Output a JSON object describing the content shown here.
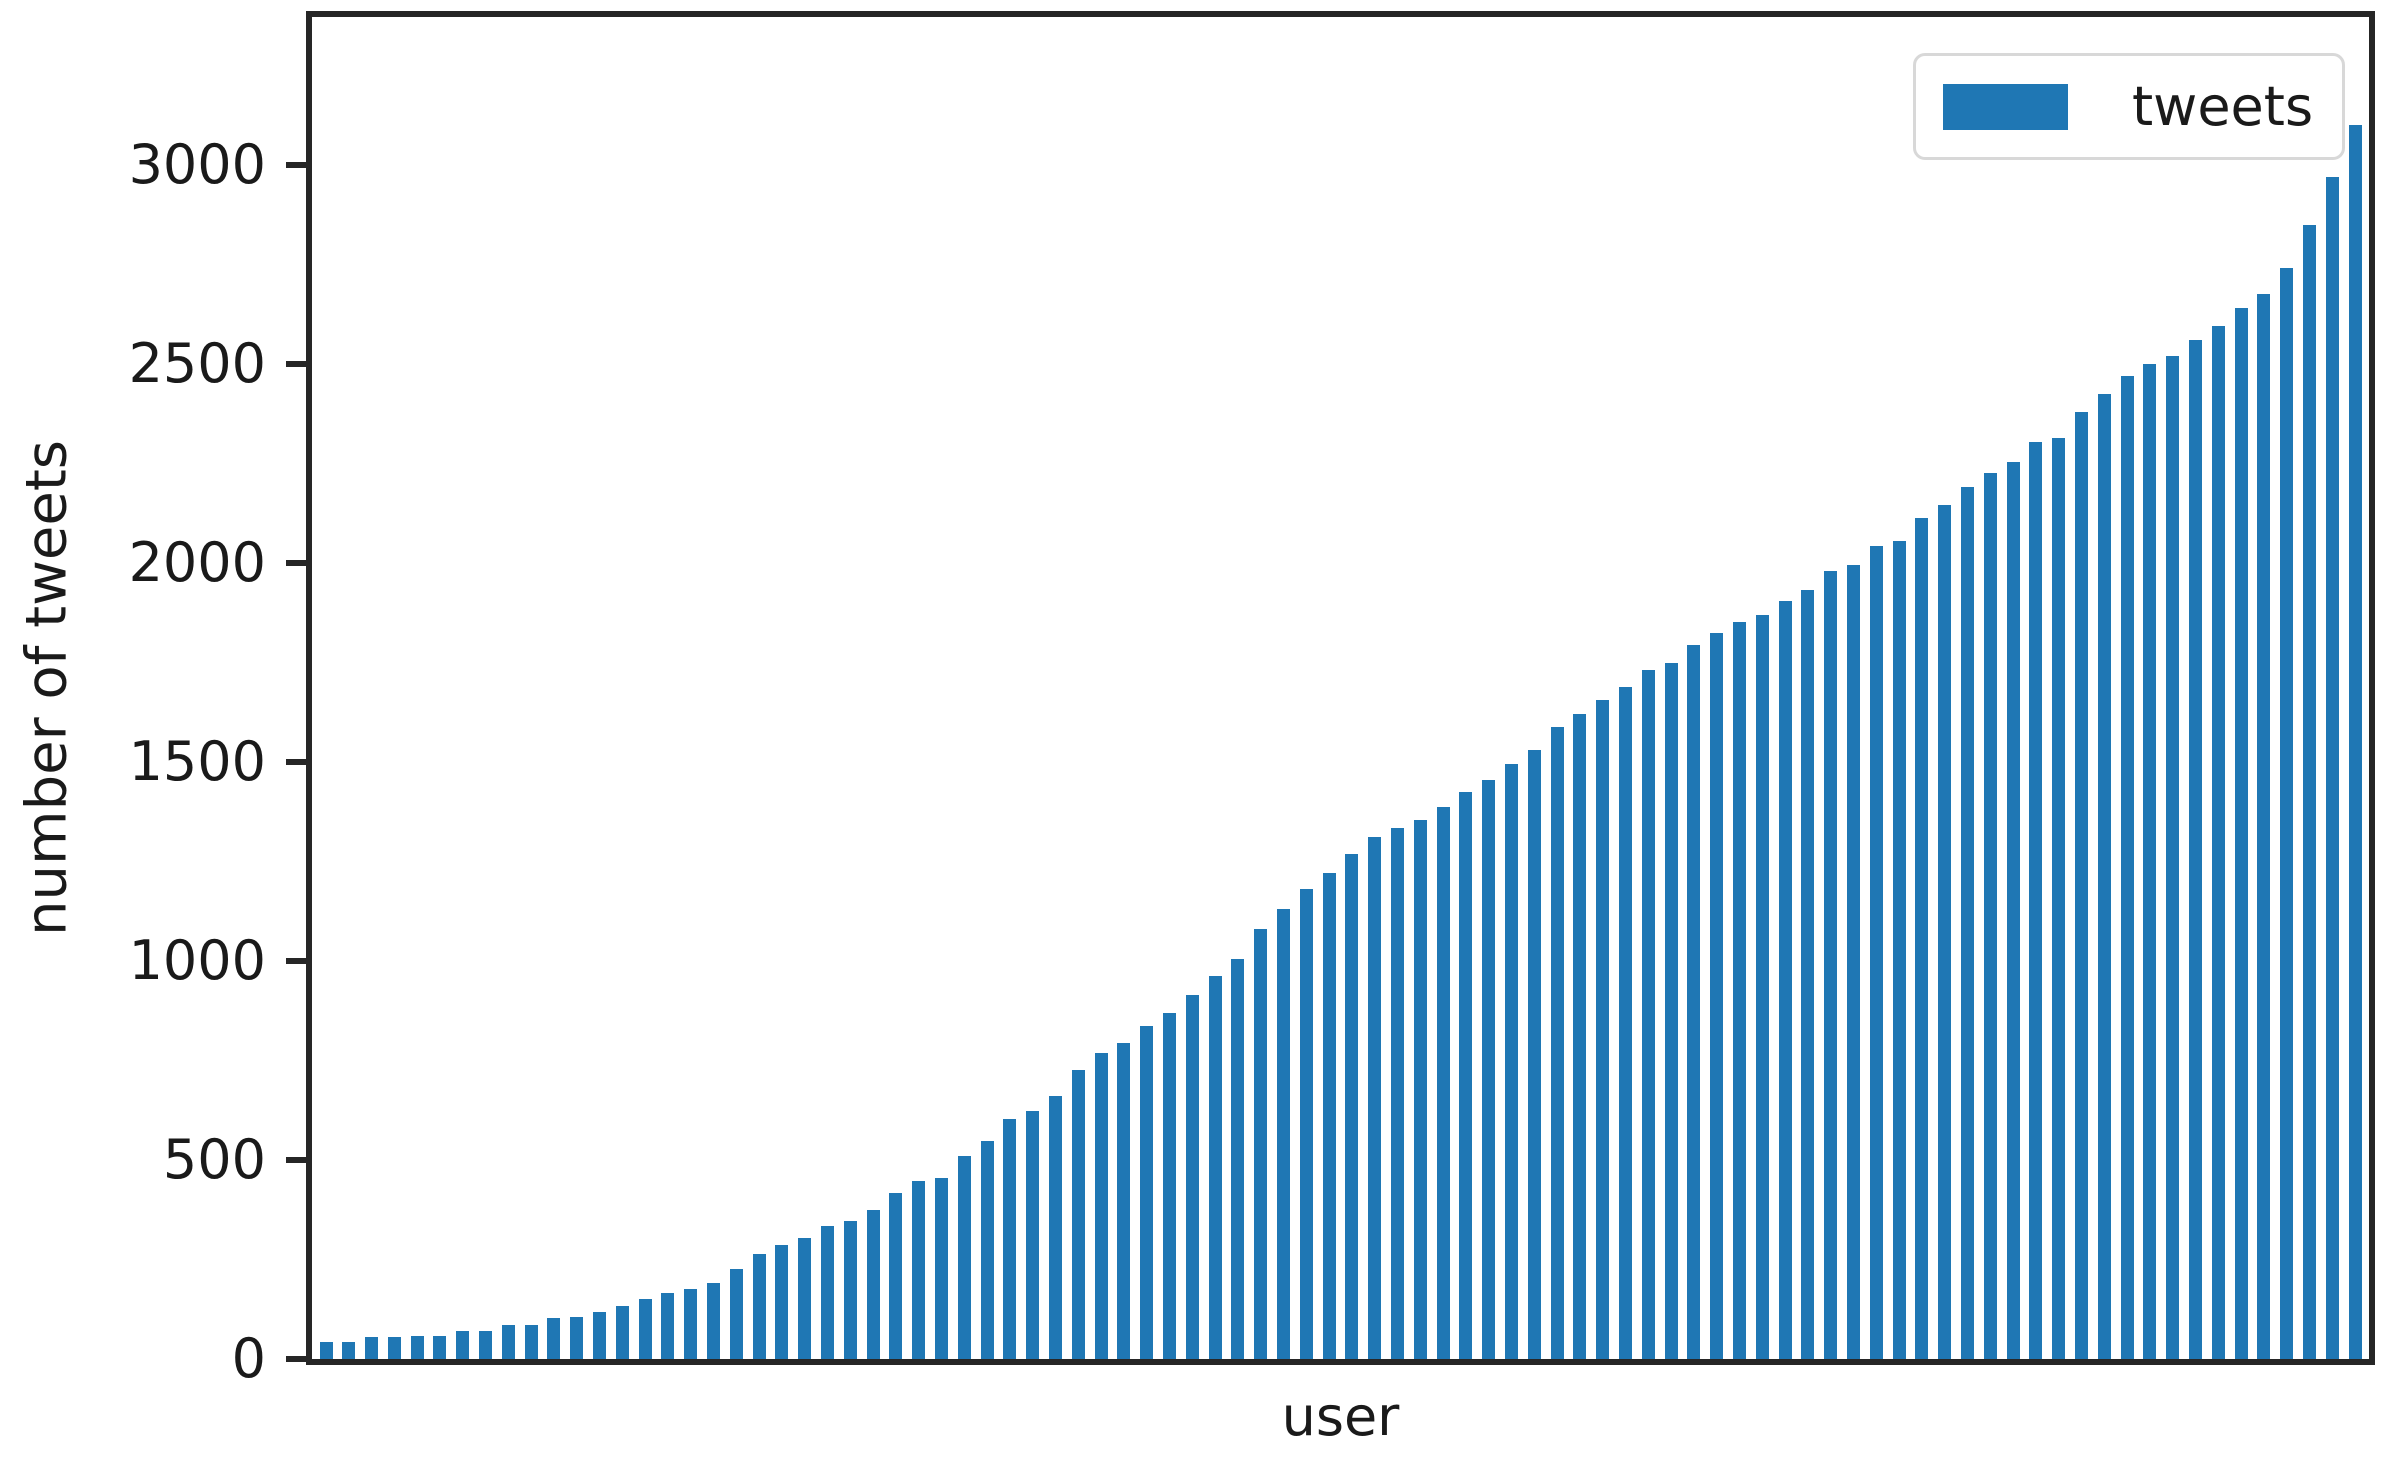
{
  "axes": {
    "ylabel": "number of tweets",
    "xlabel": "user",
    "spine_color": "#262626",
    "tick_label_color": "#1a1a1a",
    "background": "#ffffff"
  },
  "legend": {
    "label": "tweets",
    "swatch_color": "#1f77b4",
    "position": "upper right"
  },
  "chart_data": {
    "type": "bar",
    "title": "",
    "xlabel": "user",
    "ylabel": "number of tweets",
    "legend_entries": [
      "tweets"
    ],
    "legend_position": "upper right",
    "bar_color": "#1f77b4",
    "grid": false,
    "x_tick_labels_visible": false,
    "n_bars": 90,
    "ylim": [
      0,
      3372
    ],
    "yticks": [
      0,
      500,
      1000,
      1500,
      2000,
      2500,
      3000
    ],
    "series": [
      {
        "name": "tweets",
        "values": [
          42,
          42,
          55,
          55,
          57,
          58,
          70,
          70,
          85,
          85,
          102,
          105,
          117,
          132,
          150,
          165,
          177,
          192,
          225,
          265,
          287,
          305,
          333,
          347,
          375,
          417,
          447,
          455,
          510,
          547,
          602,
          622,
          662,
          725,
          770,
          795,
          837,
          870,
          915,
          962,
          1005,
          1080,
          1130,
          1180,
          1220,
          1270,
          1312,
          1333,
          1355,
          1387,
          1425,
          1455,
          1495,
          1530,
          1587,
          1620,
          1655,
          1688,
          1730,
          1750,
          1795,
          1825,
          1852,
          1870,
          1905,
          1933,
          1980,
          1995,
          2042,
          2055,
          2112,
          2145,
          2192,
          2225,
          2255,
          2305,
          2315,
          2380,
          2425,
          2470,
          2500,
          2520,
          2560,
          2595,
          2642,
          2675,
          2742,
          2850,
          2970,
          3100
        ]
      }
    ]
  }
}
